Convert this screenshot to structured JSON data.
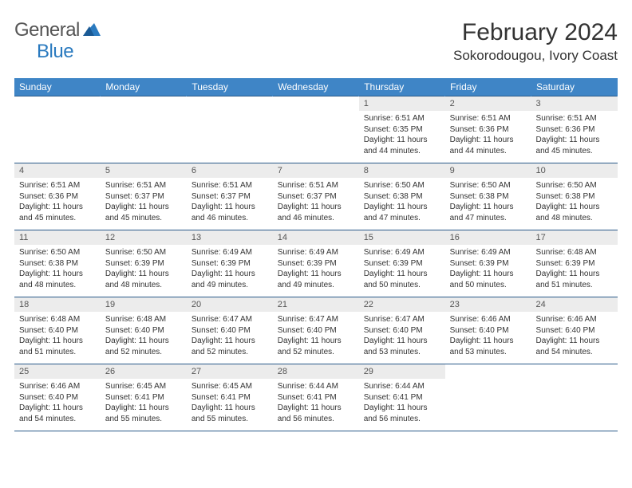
{
  "logo": {
    "text_gray": "General",
    "text_blue": "Blue"
  },
  "title": "February 2024",
  "location": "Sokorodougou, Ivory Coast",
  "colors": {
    "header_bg": "#3f85c6",
    "header_text": "#ffffff",
    "daynum_bg": "#ececec",
    "border": "#2a5a8a",
    "logo_gray": "#555555",
    "logo_blue": "#2a7abf"
  },
  "daynames": [
    "Sunday",
    "Monday",
    "Tuesday",
    "Wednesday",
    "Thursday",
    "Friday",
    "Saturday"
  ],
  "weeks": [
    [
      {
        "n": "",
        "sr": "",
        "ss": "",
        "dl": ""
      },
      {
        "n": "",
        "sr": "",
        "ss": "",
        "dl": ""
      },
      {
        "n": "",
        "sr": "",
        "ss": "",
        "dl": ""
      },
      {
        "n": "",
        "sr": "",
        "ss": "",
        "dl": ""
      },
      {
        "n": "1",
        "sr": "Sunrise: 6:51 AM",
        "ss": "Sunset: 6:35 PM",
        "dl": "Daylight: 11 hours and 44 minutes."
      },
      {
        "n": "2",
        "sr": "Sunrise: 6:51 AM",
        "ss": "Sunset: 6:36 PM",
        "dl": "Daylight: 11 hours and 44 minutes."
      },
      {
        "n": "3",
        "sr": "Sunrise: 6:51 AM",
        "ss": "Sunset: 6:36 PM",
        "dl": "Daylight: 11 hours and 45 minutes."
      }
    ],
    [
      {
        "n": "4",
        "sr": "Sunrise: 6:51 AM",
        "ss": "Sunset: 6:36 PM",
        "dl": "Daylight: 11 hours and 45 minutes."
      },
      {
        "n": "5",
        "sr": "Sunrise: 6:51 AM",
        "ss": "Sunset: 6:37 PM",
        "dl": "Daylight: 11 hours and 45 minutes."
      },
      {
        "n": "6",
        "sr": "Sunrise: 6:51 AM",
        "ss": "Sunset: 6:37 PM",
        "dl": "Daylight: 11 hours and 46 minutes."
      },
      {
        "n": "7",
        "sr": "Sunrise: 6:51 AM",
        "ss": "Sunset: 6:37 PM",
        "dl": "Daylight: 11 hours and 46 minutes."
      },
      {
        "n": "8",
        "sr": "Sunrise: 6:50 AM",
        "ss": "Sunset: 6:38 PM",
        "dl": "Daylight: 11 hours and 47 minutes."
      },
      {
        "n": "9",
        "sr": "Sunrise: 6:50 AM",
        "ss": "Sunset: 6:38 PM",
        "dl": "Daylight: 11 hours and 47 minutes."
      },
      {
        "n": "10",
        "sr": "Sunrise: 6:50 AM",
        "ss": "Sunset: 6:38 PM",
        "dl": "Daylight: 11 hours and 48 minutes."
      }
    ],
    [
      {
        "n": "11",
        "sr": "Sunrise: 6:50 AM",
        "ss": "Sunset: 6:38 PM",
        "dl": "Daylight: 11 hours and 48 minutes."
      },
      {
        "n": "12",
        "sr": "Sunrise: 6:50 AM",
        "ss": "Sunset: 6:39 PM",
        "dl": "Daylight: 11 hours and 48 minutes."
      },
      {
        "n": "13",
        "sr": "Sunrise: 6:49 AM",
        "ss": "Sunset: 6:39 PM",
        "dl": "Daylight: 11 hours and 49 minutes."
      },
      {
        "n": "14",
        "sr": "Sunrise: 6:49 AM",
        "ss": "Sunset: 6:39 PM",
        "dl": "Daylight: 11 hours and 49 minutes."
      },
      {
        "n": "15",
        "sr": "Sunrise: 6:49 AM",
        "ss": "Sunset: 6:39 PM",
        "dl": "Daylight: 11 hours and 50 minutes."
      },
      {
        "n": "16",
        "sr": "Sunrise: 6:49 AM",
        "ss": "Sunset: 6:39 PM",
        "dl": "Daylight: 11 hours and 50 minutes."
      },
      {
        "n": "17",
        "sr": "Sunrise: 6:48 AM",
        "ss": "Sunset: 6:39 PM",
        "dl": "Daylight: 11 hours and 51 minutes."
      }
    ],
    [
      {
        "n": "18",
        "sr": "Sunrise: 6:48 AM",
        "ss": "Sunset: 6:40 PM",
        "dl": "Daylight: 11 hours and 51 minutes."
      },
      {
        "n": "19",
        "sr": "Sunrise: 6:48 AM",
        "ss": "Sunset: 6:40 PM",
        "dl": "Daylight: 11 hours and 52 minutes."
      },
      {
        "n": "20",
        "sr": "Sunrise: 6:47 AM",
        "ss": "Sunset: 6:40 PM",
        "dl": "Daylight: 11 hours and 52 minutes."
      },
      {
        "n": "21",
        "sr": "Sunrise: 6:47 AM",
        "ss": "Sunset: 6:40 PM",
        "dl": "Daylight: 11 hours and 52 minutes."
      },
      {
        "n": "22",
        "sr": "Sunrise: 6:47 AM",
        "ss": "Sunset: 6:40 PM",
        "dl": "Daylight: 11 hours and 53 minutes."
      },
      {
        "n": "23",
        "sr": "Sunrise: 6:46 AM",
        "ss": "Sunset: 6:40 PM",
        "dl": "Daylight: 11 hours and 53 minutes."
      },
      {
        "n": "24",
        "sr": "Sunrise: 6:46 AM",
        "ss": "Sunset: 6:40 PM",
        "dl": "Daylight: 11 hours and 54 minutes."
      }
    ],
    [
      {
        "n": "25",
        "sr": "Sunrise: 6:46 AM",
        "ss": "Sunset: 6:40 PM",
        "dl": "Daylight: 11 hours and 54 minutes."
      },
      {
        "n": "26",
        "sr": "Sunrise: 6:45 AM",
        "ss": "Sunset: 6:41 PM",
        "dl": "Daylight: 11 hours and 55 minutes."
      },
      {
        "n": "27",
        "sr": "Sunrise: 6:45 AM",
        "ss": "Sunset: 6:41 PM",
        "dl": "Daylight: 11 hours and 55 minutes."
      },
      {
        "n": "28",
        "sr": "Sunrise: 6:44 AM",
        "ss": "Sunset: 6:41 PM",
        "dl": "Daylight: 11 hours and 56 minutes."
      },
      {
        "n": "29",
        "sr": "Sunrise: 6:44 AM",
        "ss": "Sunset: 6:41 PM",
        "dl": "Daylight: 11 hours and 56 minutes."
      },
      {
        "n": "",
        "sr": "",
        "ss": "",
        "dl": ""
      },
      {
        "n": "",
        "sr": "",
        "ss": "",
        "dl": ""
      }
    ]
  ]
}
